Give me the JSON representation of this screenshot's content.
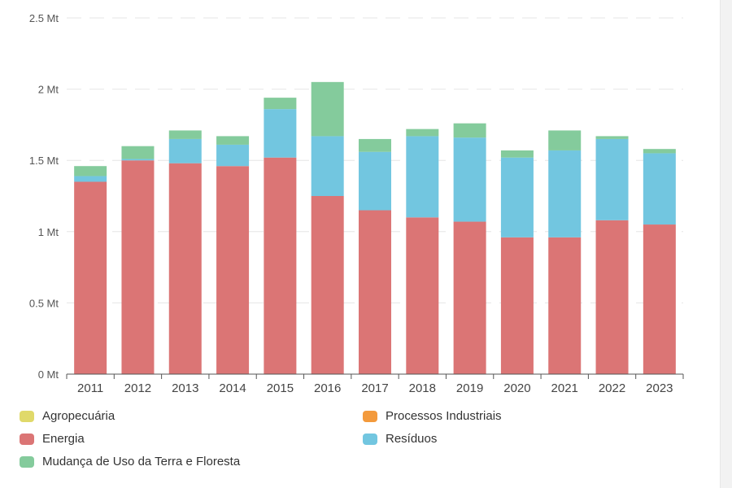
{
  "chart_data": {
    "type": "bar",
    "stacked": true,
    "categories": [
      "2011",
      "2012",
      "2013",
      "2014",
      "2015",
      "2016",
      "2017",
      "2018",
      "2019",
      "2020",
      "2021",
      "2022",
      "2023"
    ],
    "y_ticks": [
      {
        "value": 0,
        "label": "0 Mt"
      },
      {
        "value": 0.5,
        "label": "0.5 Mt"
      },
      {
        "value": 1,
        "label": "1 Mt"
      },
      {
        "value": 1.5,
        "label": "1.5 Mt"
      },
      {
        "value": 2,
        "label": "2 Mt"
      },
      {
        "value": 2.5,
        "label": "2.5 Mt"
      }
    ],
    "ylim": [
      0,
      2.5
    ],
    "series": [
      {
        "name": "Agropecuária",
        "color": "#e0d96a",
        "values": [
          0,
          0,
          0,
          0,
          0,
          0,
          0,
          0,
          0,
          0,
          0,
          0,
          0
        ]
      },
      {
        "name": "Processos Industriais",
        "color": "#f39a3c",
        "values": [
          0,
          0,
          0,
          0,
          0,
          0,
          0,
          0,
          0,
          0,
          0,
          0,
          0
        ]
      },
      {
        "name": "Energia",
        "color": "#db7575",
        "values": [
          1.35,
          1.5,
          1.48,
          1.46,
          1.52,
          1.25,
          1.15,
          1.1,
          1.07,
          0.96,
          0.96,
          1.08,
          1.05
        ]
      },
      {
        "name": "Resíduos",
        "color": "#72c6e0",
        "values": [
          0.04,
          0.01,
          0.17,
          0.15,
          0.34,
          0.42,
          0.41,
          0.57,
          0.59,
          0.56,
          0.61,
          0.57,
          0.5
        ]
      },
      {
        "name": "Mudança de Uso da Terra e Floresta",
        "color": "#84cb9c",
        "values": [
          0.07,
          0.09,
          0.06,
          0.06,
          0.08,
          0.38,
          0.09,
          0.05,
          0.1,
          0.05,
          0.14,
          0.02,
          0.03
        ]
      }
    ],
    "legend": [
      {
        "name": "Agropecuária",
        "color": "#e0d96a"
      },
      {
        "name": "Processos Industriais",
        "color": "#f39a3c"
      },
      {
        "name": "Energia",
        "color": "#db7575"
      },
      {
        "name": "Resíduos",
        "color": "#72c6e0"
      },
      {
        "name": "Mudança de Uso da Terra e Floresta",
        "color": "#84cb9c"
      }
    ],
    "grid": true,
    "legend_position": "bottom"
  }
}
